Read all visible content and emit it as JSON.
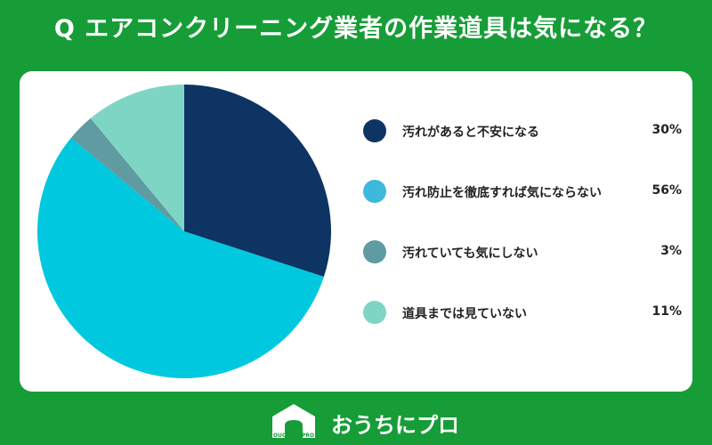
{
  "title": "Q エアコンクリーニング業者の作業道具は気になる？",
  "chart_data": {
    "type": "pie",
    "categories": [
      "汚れがあると不安になる",
      "汚れ防止を徹底すれば気にならない",
      "汚れていても気にしない",
      "道具までは見ていない"
    ],
    "values": [
      30,
      56,
      3,
      11
    ],
    "value_labels": [
      "30%",
      "56%",
      "3%",
      "11%"
    ],
    "colors": [
      "#0d3463",
      "#00c8df",
      "#5f9ba1",
      "#7fd5c3"
    ],
    "swatch_colors": [
      "#0d3463",
      "#3fb8dd",
      "#5f9ba1",
      "#7fd5c3"
    ],
    "legend_position": "right"
  },
  "brand": {
    "logo_text": "OUCHI ni PRO",
    "name": "おうちにプロ"
  }
}
